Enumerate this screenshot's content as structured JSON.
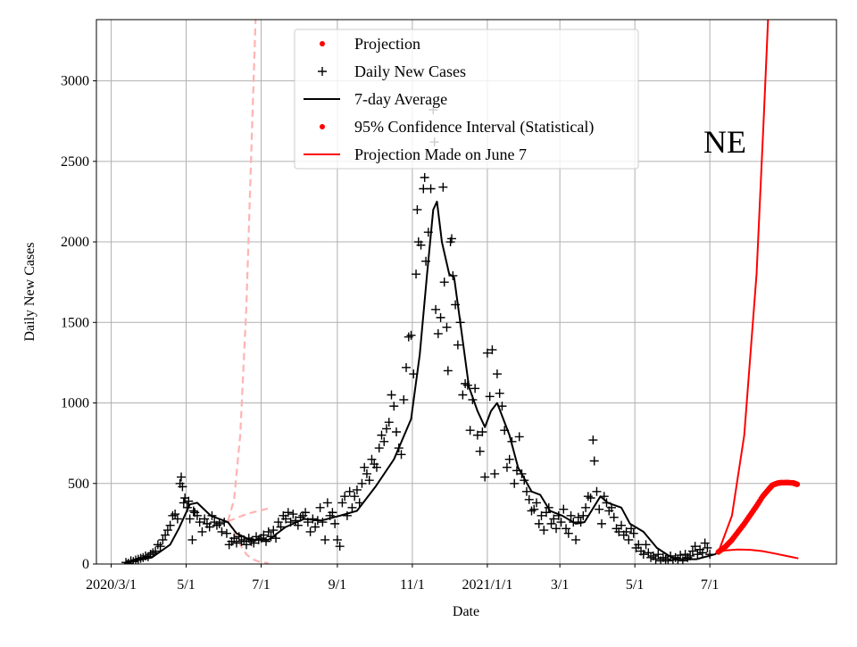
{
  "chart_data": {
    "type": "line",
    "title": "NE",
    "xlabel": "Date",
    "ylabel": "Daily New Cases",
    "x_unit": "days since 2020-03-01",
    "xlim": [
      -12,
      590
    ],
    "ylim": [
      0,
      3380
    ],
    "grid": true,
    "legend_placement": "top-center",
    "x_ticks": [
      {
        "day": 0,
        "label": "2020/3/1"
      },
      {
        "day": 61,
        "label": "5/1"
      },
      {
        "day": 122,
        "label": "7/1"
      },
      {
        "day": 184,
        "label": "9/1"
      },
      {
        "day": 245,
        "label": "11/1"
      },
      {
        "day": 306,
        "label": "2021/1/1"
      },
      {
        "day": 365,
        "label": "3/1"
      },
      {
        "day": 426,
        "label": "5/1"
      },
      {
        "day": 487,
        "label": "7/1"
      }
    ],
    "y_ticks": [
      0,
      500,
      1000,
      1500,
      2000,
      2500,
      3000
    ],
    "legend": [
      {
        "label": "Projection",
        "marker": "dot",
        "color": "#ff0000"
      },
      {
        "label": "Daily New Cases",
        "marker": "plus",
        "color": "#000000"
      },
      {
        "label": "7-day Average",
        "marker": "line",
        "color": "#000000"
      },
      {
        "label": "95% Confidence Interval (Statistical)",
        "marker": "dot",
        "color": "#ff0000"
      },
      {
        "label": "Projection Made on June 7",
        "marker": "line",
        "color": "#ff0000"
      }
    ],
    "daily_new_cases": [
      [
        12,
        10
      ],
      [
        14,
        5
      ],
      [
        16,
        20
      ],
      [
        18,
        15
      ],
      [
        20,
        25
      ],
      [
        22,
        30
      ],
      [
        24,
        35
      ],
      [
        26,
        40
      ],
      [
        28,
        50
      ],
      [
        30,
        45
      ],
      [
        32,
        60
      ],
      [
        34,
        70
      ],
      [
        36,
        80
      ],
      [
        38,
        120
      ],
      [
        40,
        110
      ],
      [
        42,
        150
      ],
      [
        44,
        180
      ],
      [
        46,
        210
      ],
      [
        48,
        240
      ],
      [
        50,
        300
      ],
      [
        52,
        310
      ],
      [
        54,
        280
      ],
      [
        56,
        500
      ],
      [
        57,
        540
      ],
      [
        58,
        480
      ],
      [
        59,
        380
      ],
      [
        60,
        410
      ],
      [
        62,
        350
      ],
      [
        63,
        390
      ],
      [
        64,
        280
      ],
      [
        66,
        150
      ],
      [
        67,
        330
      ],
      [
        68,
        320
      ],
      [
        70,
        300
      ],
      [
        72,
        260
      ],
      [
        74,
        200
      ],
      [
        76,
        280
      ],
      [
        78,
        250
      ],
      [
        80,
        230
      ],
      [
        82,
        300
      ],
      [
        84,
        260
      ],
      [
        86,
        240
      ],
      [
        88,
        250
      ],
      [
        90,
        200
      ],
      [
        92,
        260
      ],
      [
        94,
        190
      ],
      [
        96,
        120
      ],
      [
        98,
        140
      ],
      [
        100,
        160
      ],
      [
        102,
        130
      ],
      [
        104,
        170
      ],
      [
        106,
        140
      ],
      [
        108,
        150
      ],
      [
        110,
        120
      ],
      [
        112,
        160
      ],
      [
        114,
        140
      ],
      [
        116,
        130
      ],
      [
        118,
        170
      ],
      [
        120,
        150
      ],
      [
        122,
        160
      ],
      [
        124,
        180
      ],
      [
        126,
        140
      ],
      [
        128,
        200
      ],
      [
        130,
        170
      ],
      [
        132,
        210
      ],
      [
        134,
        160
      ],
      [
        136,
        260
      ],
      [
        138,
        230
      ],
      [
        140,
        300
      ],
      [
        142,
        280
      ],
      [
        144,
        320
      ],
      [
        146,
        260
      ],
      [
        148,
        310
      ],
      [
        150,
        270
      ],
      [
        152,
        240
      ],
      [
        154,
        290
      ],
      [
        156,
        300
      ],
      [
        158,
        320
      ],
      [
        160,
        260
      ],
      [
        162,
        200
      ],
      [
        164,
        280
      ],
      [
        166,
        230
      ],
      [
        168,
        270
      ],
      [
        170,
        350
      ],
      [
        172,
        260
      ],
      [
        174,
        150
      ],
      [
        176,
        380
      ],
      [
        178,
        300
      ],
      [
        180,
        320
      ],
      [
        182,
        250
      ],
      [
        184,
        150
      ],
      [
        186,
        110
      ],
      [
        188,
        380
      ],
      [
        190,
        420
      ],
      [
        192,
        300
      ],
      [
        194,
        450
      ],
      [
        196,
        350
      ],
      [
        198,
        420
      ],
      [
        200,
        460
      ],
      [
        202,
        380
      ],
      [
        204,
        500
      ],
      [
        206,
        600
      ],
      [
        208,
        560
      ],
      [
        210,
        520
      ],
      [
        212,
        650
      ],
      [
        214,
        620
      ],
      [
        216,
        600
      ],
      [
        218,
        720
      ],
      [
        220,
        800
      ],
      [
        222,
        760
      ],
      [
        224,
        840
      ],
      [
        226,
        880
      ],
      [
        228,
        1050
      ],
      [
        230,
        980
      ],
      [
        232,
        820
      ],
      [
        234,
        720
      ],
      [
        236,
        680
      ],
      [
        238,
        1020
      ],
      [
        240,
        1220
      ],
      [
        242,
        1410
      ],
      [
        244,
        1420
      ],
      [
        246,
        1180
      ],
      [
        248,
        1800
      ],
      [
        249,
        2200
      ],
      [
        250,
        2000
      ],
      [
        252,
        1980
      ],
      [
        254,
        2330
      ],
      [
        255,
        2400
      ],
      [
        256,
        1880
      ],
      [
        258,
        2060
      ],
      [
        260,
        2330
      ],
      [
        262,
        2820
      ],
      [
        263,
        2620
      ],
      [
        264,
        1580
      ],
      [
        266,
        1430
      ],
      [
        268,
        1530
      ],
      [
        270,
        2340
      ],
      [
        271,
        1750
      ],
      [
        273,
        1470
      ],
      [
        274,
        1200
      ],
      [
        276,
        2000
      ],
      [
        277,
        2020
      ],
      [
        278,
        1790
      ],
      [
        280,
        1610
      ],
      [
        282,
        1360
      ],
      [
        284,
        1500
      ],
      [
        286,
        1050
      ],
      [
        288,
        1120
      ],
      [
        290,
        1110
      ],
      [
        292,
        830
      ],
      [
        294,
        1020
      ],
      [
        296,
        1090
      ],
      [
        298,
        800
      ],
      [
        300,
        700
      ],
      [
        302,
        820
      ],
      [
        304,
        540
      ],
      [
        306,
        1310
      ],
      [
        308,
        1040
      ],
      [
        310,
        1330
      ],
      [
        312,
        560
      ],
      [
        314,
        1180
      ],
      [
        316,
        1060
      ],
      [
        318,
        980
      ],
      [
        320,
        830
      ],
      [
        322,
        600
      ],
      [
        324,
        650
      ],
      [
        326,
        760
      ],
      [
        328,
        500
      ],
      [
        330,
        580
      ],
      [
        332,
        790
      ],
      [
        334,
        560
      ],
      [
        336,
        520
      ],
      [
        338,
        450
      ],
      [
        340,
        400
      ],
      [
        342,
        330
      ],
      [
        344,
        340
      ],
      [
        346,
        380
      ],
      [
        348,
        250
      ],
      [
        350,
        300
      ],
      [
        352,
        210
      ],
      [
        354,
        320
      ],
      [
        356,
        350
      ],
      [
        358,
        250
      ],
      [
        360,
        280
      ],
      [
        362,
        220
      ],
      [
        364,
        300
      ],
      [
        366,
        260
      ],
      [
        368,
        340
      ],
      [
        370,
        220
      ],
      [
        372,
        190
      ],
      [
        374,
        300
      ],
      [
        376,
        260
      ],
      [
        378,
        150
      ],
      [
        380,
        290
      ],
      [
        382,
        260
      ],
      [
        384,
        300
      ],
      [
        386,
        350
      ],
      [
        388,
        420
      ],
      [
        390,
        410
      ],
      [
        392,
        770
      ],
      [
        393,
        640
      ],
      [
        395,
        450
      ],
      [
        397,
        340
      ],
      [
        399,
        250
      ],
      [
        401,
        420
      ],
      [
        403,
        380
      ],
      [
        405,
        330
      ],
      [
        407,
        350
      ],
      [
        409,
        290
      ],
      [
        411,
        220
      ],
      [
        413,
        200
      ],
      [
        415,
        240
      ],
      [
        417,
        180
      ],
      [
        419,
        200
      ],
      [
        421,
        150
      ],
      [
        423,
        220
      ],
      [
        425,
        190
      ],
      [
        427,
        100
      ],
      [
        429,
        120
      ],
      [
        431,
        80
      ],
      [
        433,
        60
      ],
      [
        435,
        120
      ],
      [
        437,
        70
      ],
      [
        439,
        40
      ],
      [
        441,
        50
      ],
      [
        443,
        30
      ],
      [
        445,
        60
      ],
      [
        447,
        20
      ],
      [
        449,
        40
      ],
      [
        451,
        30
      ],
      [
        453,
        20
      ],
      [
        455,
        50
      ],
      [
        457,
        25
      ],
      [
        459,
        40
      ],
      [
        461,
        30
      ],
      [
        463,
        55
      ],
      [
        465,
        20
      ],
      [
        467,
        60
      ],
      [
        469,
        40
      ],
      [
        471,
        50
      ],
      [
        473,
        80
      ],
      [
        475,
        110
      ],
      [
        477,
        60
      ],
      [
        479,
        90
      ],
      [
        481,
        70
      ],
      [
        483,
        130
      ],
      [
        485,
        100
      ],
      [
        487,
        60
      ]
    ],
    "seven_day_average": [
      [
        12,
        10
      ],
      [
        33,
        40
      ],
      [
        48,
        120
      ],
      [
        55,
        220
      ],
      [
        64,
        370
      ],
      [
        70,
        380
      ],
      [
        81,
        300
      ],
      [
        95,
        260
      ],
      [
        102,
        190
      ],
      [
        113,
        150
      ],
      [
        128,
        150
      ],
      [
        142,
        230
      ],
      [
        157,
        280
      ],
      [
        171,
        270
      ],
      [
        186,
        300
      ],
      [
        200,
        330
      ],
      [
        215,
        480
      ],
      [
        230,
        650
      ],
      [
        244,
        900
      ],
      [
        251,
        1300
      ],
      [
        257,
        1800
      ],
      [
        262,
        2200
      ],
      [
        265,
        2250
      ],
      [
        269,
        2000
      ],
      [
        275,
        1800
      ],
      [
        279,
        1780
      ],
      [
        284,
        1500
      ],
      [
        291,
        1100
      ],
      [
        298,
        950
      ],
      [
        304,
        850
      ],
      [
        309,
        950
      ],
      [
        314,
        1000
      ],
      [
        324,
        800
      ],
      [
        331,
        600
      ],
      [
        342,
        450
      ],
      [
        349,
        430
      ],
      [
        357,
        330
      ],
      [
        367,
        300
      ],
      [
        378,
        250
      ],
      [
        385,
        260
      ],
      [
        398,
        420
      ],
      [
        404,
        380
      ],
      [
        415,
        350
      ],
      [
        422,
        250
      ],
      [
        433,
        200
      ],
      [
        444,
        100
      ],
      [
        458,
        30
      ],
      [
        476,
        30
      ],
      [
        491,
        60
      ],
      [
        494,
        75
      ]
    ],
    "projection_made_on_june_7": {
      "upper": [
        [
          494,
          75
        ],
        [
          505,
          300
        ],
        [
          515,
          800
        ],
        [
          525,
          1800
        ],
        [
          531,
          2800
        ],
        [
          535,
          3500
        ]
      ],
      "lower": [
        [
          494,
          75
        ],
        [
          500,
          85
        ],
        [
          510,
          90
        ],
        [
          520,
          88
        ],
        [
          530,
          80
        ],
        [
          540,
          65
        ],
        [
          559,
          35
        ]
      ]
    },
    "projection_dots": [
      [
        494,
        75
      ],
      [
        500,
        110
      ],
      [
        505,
        150
      ],
      [
        510,
        200
      ],
      [
        515,
        250
      ],
      [
        520,
        305
      ],
      [
        525,
        360
      ],
      [
        530,
        420
      ],
      [
        535,
        465
      ],
      [
        538,
        490
      ],
      [
        542,
        502
      ],
      [
        545,
        505
      ],
      [
        550,
        506
      ],
      [
        555,
        503
      ],
      [
        558,
        495
      ]
    ],
    "earlier_projection_faded": {
      "color": "#ffb3b3",
      "upper": [
        [
          95,
          265
        ],
        [
          100,
          400
        ],
        [
          105,
          800
        ],
        [
          110,
          1600
        ],
        [
          115,
          2800
        ],
        [
          118,
          3500
        ]
      ],
      "middle": [
        [
          95,
          265
        ],
        [
          100,
          280
        ],
        [
          110,
          310
        ],
        [
          120,
          330
        ],
        [
          128,
          345
        ]
      ],
      "lower": [
        [
          95,
          265
        ],
        [
          100,
          200
        ],
        [
          105,
          120
        ],
        [
          110,
          60
        ],
        [
          115,
          30
        ],
        [
          120,
          15
        ],
        [
          128,
          5
        ]
      ]
    }
  }
}
